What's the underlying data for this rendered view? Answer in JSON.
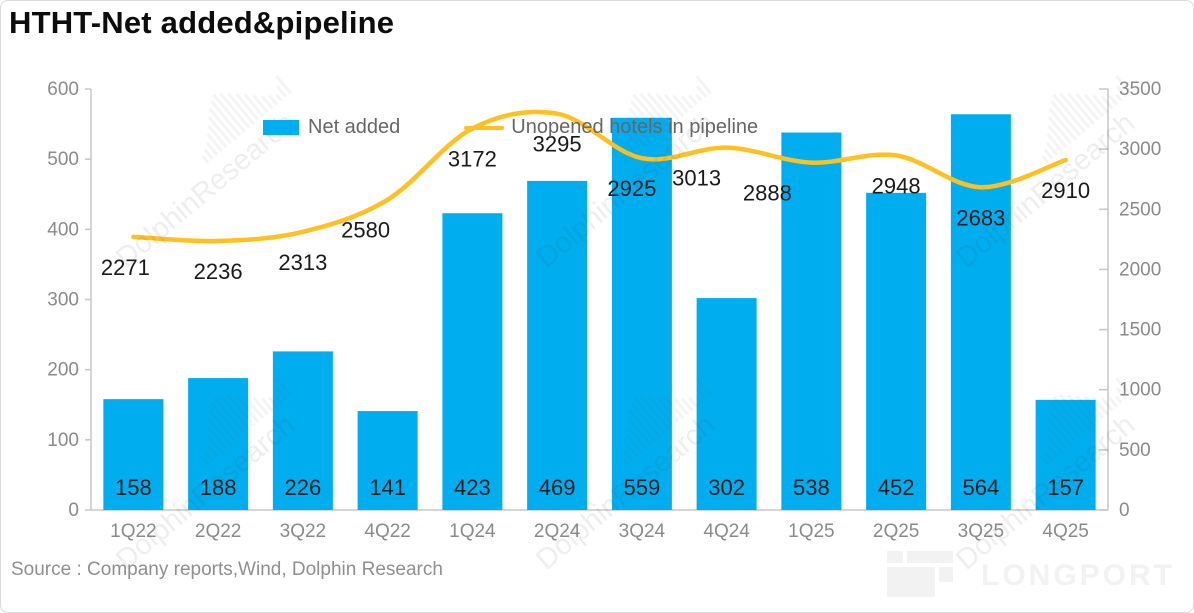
{
  "title": "HTHT-Net added&pipeline",
  "source": "Source : Company reports,Wind, Dolphin Research",
  "watermark": {
    "text": "DolphinResearch"
  },
  "logo": {
    "text": "LONGPORT"
  },
  "legend": [
    {
      "label": "Net added",
      "marker": "bar-swatch",
      "color": "#00AEEF"
    },
    {
      "label": "Unopened hotels in pipeline",
      "marker": "line",
      "color": "#FFC020"
    }
  ],
  "chart_data": {
    "type": "bar",
    "title": "HTHT-Net added&pipeline",
    "categories": [
      "1Q22",
      "2Q22",
      "3Q22",
      "4Q22",
      "1Q24",
      "2Q24",
      "3Q24",
      "4Q24",
      "1Q25",
      "2Q25",
      "3Q25",
      "4Q25"
    ],
    "series": [
      {
        "name": "Net added",
        "type": "bar",
        "axis": "left",
        "color": "#00AEEF",
        "values": [
          158,
          188,
          226,
          141,
          423,
          469,
          559,
          302,
          538,
          452,
          564,
          157
        ]
      },
      {
        "name": "Unopened hotels in pipeline",
        "type": "line",
        "axis": "right",
        "color": "#FFC020",
        "values": [
          2271,
          2236,
          2313,
          2580,
          3172,
          3295,
          2925,
          3013,
          2888,
          2948,
          2683,
          2910
        ]
      }
    ],
    "left_axis": {
      "ticks": [
        0,
        100,
        200,
        300,
        400,
        500,
        600
      ],
      "range": [
        0,
        600
      ]
    },
    "right_axis": {
      "ticks": [
        0,
        500,
        1000,
        1500,
        2000,
        2500,
        3000,
        3500
      ],
      "range": [
        0,
        3500
      ]
    },
    "grid": false,
    "legend_position": "top-center",
    "line_label_dx": [
      -8,
      0,
      0,
      -22,
      0,
      0,
      -10,
      -30,
      -44,
      0,
      0,
      0
    ],
    "colors": {
      "bar": "#00AEEF",
      "line": "#FFC020",
      "axis_line": "#c9c9c9",
      "tick_text": "#8a8a8a",
      "value_text": "#1a1a1a"
    }
  }
}
